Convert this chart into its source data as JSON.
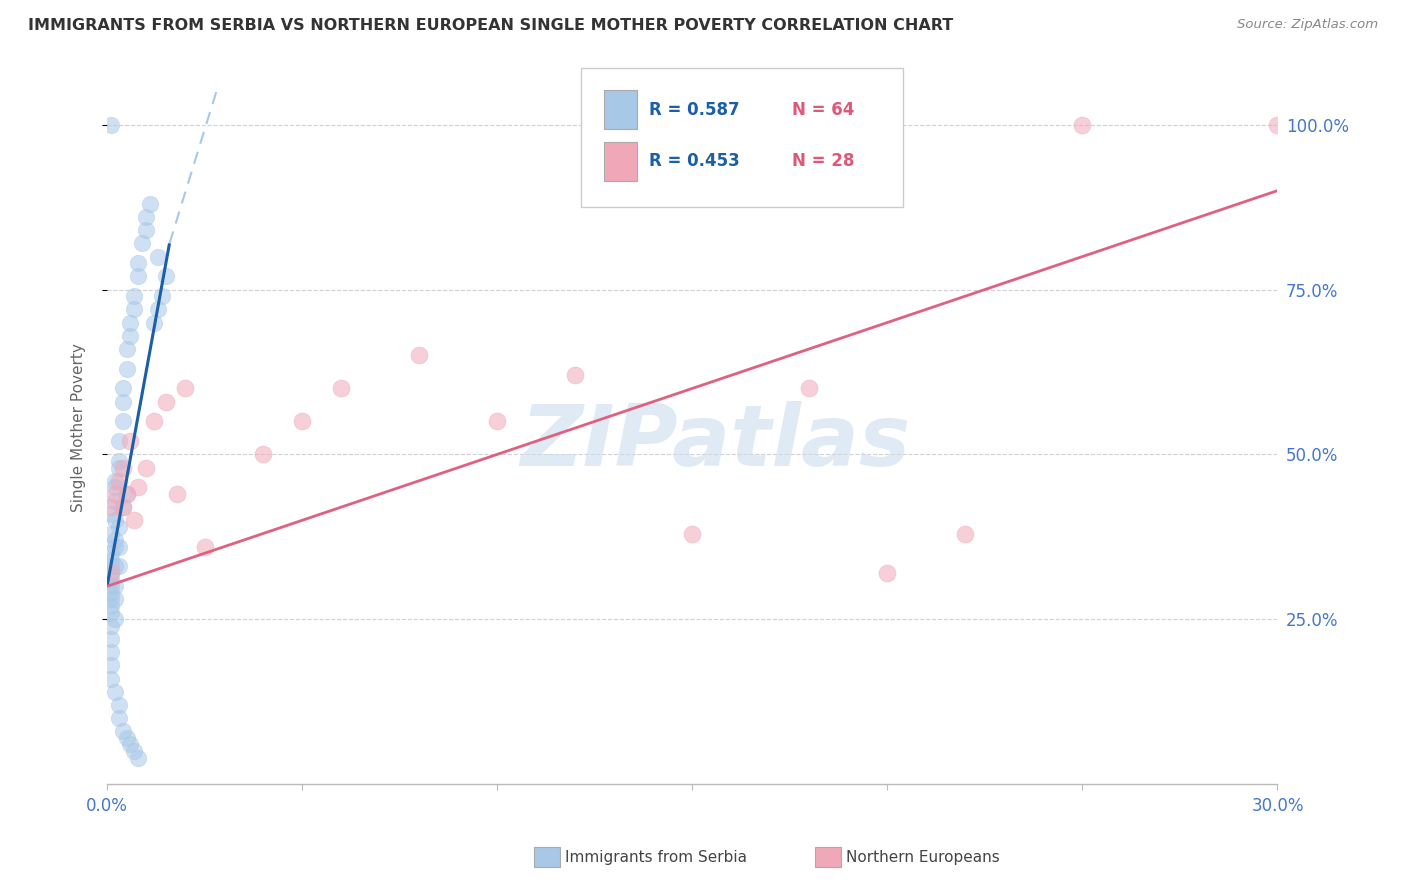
{
  "title": "IMMIGRANTS FROM SERBIA VS NORTHERN EUROPEAN SINGLE MOTHER POVERTY CORRELATION CHART",
  "source": "Source: ZipAtlas.com",
  "ylabel": "Single Mother Poverty",
  "watermark": "ZIPatlas",
  "xlim": [
    0.0,
    0.3
  ],
  "ylim": [
    0.0,
    1.08
  ],
  "x_tick_positions": [
    0.0,
    0.05,
    0.1,
    0.15,
    0.2,
    0.25,
    0.3
  ],
  "x_tick_labels": [
    "0.0%",
    "",
    "",
    "",
    "",
    "",
    "30.0%"
  ],
  "y_tick_positions": [
    0.25,
    0.5,
    0.75,
    1.0
  ],
  "y_tick_labels": [
    "25.0%",
    "50.0%",
    "75.0%",
    "100.0%"
  ],
  "legend_r1": "R = 0.587",
  "legend_n1": "N = 64",
  "legend_r2": "R = 0.453",
  "legend_n2": "N = 28",
  "blue_scatter_color": "#a8c8e8",
  "pink_scatter_color": "#f0a8b8",
  "blue_line_color": "#1a5fa8",
  "pink_line_color": "#e06080",
  "blue_dashed_color": "#a8c8e8",
  "axis_color": "#4477cc",
  "grid_color": "#cccccc",
  "title_color": "#333333",
  "source_color": "#888888",
  "serbia_x": [
    0.001,
    0.001,
    0.001,
    0.001,
    0.001,
    0.001,
    0.001,
    0.001,
    0.001,
    0.001,
    0.001,
    0.001,
    0.001,
    0.002,
    0.002,
    0.002,
    0.002,
    0.002,
    0.002,
    0.002,
    0.002,
    0.002,
    0.003,
    0.003,
    0.003,
    0.003,
    0.003,
    0.004,
    0.004,
    0.004,
    0.004,
    0.005,
    0.005,
    0.005,
    0.006,
    0.006,
    0.007,
    0.007,
    0.008,
    0.008,
    0.009,
    0.01,
    0.01,
    0.011,
    0.012,
    0.013,
    0.014,
    0.015,
    0.001,
    0.001,
    0.002,
    0.003,
    0.003,
    0.004,
    0.005,
    0.006,
    0.007,
    0.008,
    0.002,
    0.003,
    0.001,
    0.001,
    0.013,
    0.001
  ],
  "serbia_y": [
    0.3,
    0.32,
    0.34,
    0.28,
    0.26,
    0.24,
    0.22,
    0.2,
    0.31,
    0.29,
    0.27,
    0.33,
    0.35,
    0.37,
    0.4,
    0.36,
    0.33,
    0.3,
    0.28,
    0.25,
    0.43,
    0.46,
    0.49,
    0.52,
    0.39,
    0.36,
    0.33,
    0.55,
    0.58,
    0.6,
    0.42,
    0.63,
    0.66,
    0.44,
    0.68,
    0.7,
    0.72,
    0.74,
    0.77,
    0.79,
    0.82,
    0.84,
    0.86,
    0.88,
    0.7,
    0.72,
    0.74,
    0.77,
    0.18,
    0.16,
    0.14,
    0.12,
    0.1,
    0.08,
    0.07,
    0.06,
    0.05,
    0.04,
    0.45,
    0.48,
    0.38,
    0.41,
    0.8,
    1.0
  ],
  "northern_x": [
    0.001,
    0.001,
    0.002,
    0.003,
    0.004,
    0.004,
    0.005,
    0.006,
    0.007,
    0.008,
    0.01,
    0.012,
    0.015,
    0.018,
    0.02,
    0.025,
    0.04,
    0.05,
    0.06,
    0.08,
    0.1,
    0.12,
    0.15,
    0.18,
    0.2,
    0.22,
    0.25,
    0.3
  ],
  "northern_y": [
    0.32,
    0.42,
    0.44,
    0.46,
    0.48,
    0.42,
    0.44,
    0.52,
    0.4,
    0.45,
    0.48,
    0.55,
    0.58,
    0.44,
    0.6,
    0.36,
    0.5,
    0.55,
    0.6,
    0.65,
    0.55,
    0.62,
    0.38,
    0.6,
    0.32,
    0.38,
    1.0,
    1.0
  ]
}
